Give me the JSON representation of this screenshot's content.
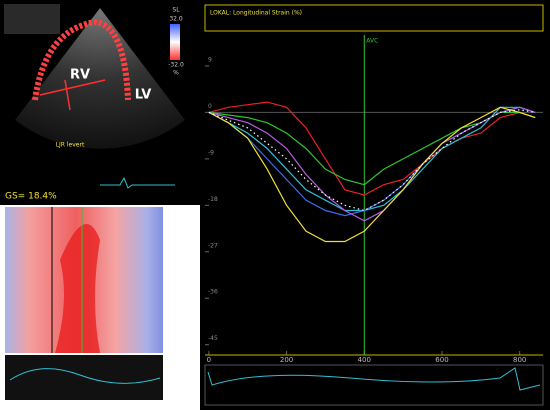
{
  "image_panel": {
    "labels": [
      "RV",
      "LV"
    ],
    "scale": {
      "title": "SL",
      "max": "32.0",
      "min": "-32.0",
      "unit": "%"
    },
    "caption": "LJR levert",
    "gs": "GS= 18.4%"
  },
  "chart_data": {
    "type": "line",
    "title": "LOKAL: Longitudinal Strain (%)",
    "x": [
      0,
      50,
      100,
      150,
      200,
      250,
      300,
      350,
      400,
      450,
      500,
      550,
      600,
      650,
      700,
      750,
      800,
      840
    ],
    "series": [
      {
        "color": "#e8202a",
        "values": [
          0,
          1,
          1.5,
          2,
          1,
          -3,
          -9,
          -15,
          -16,
          -14,
          -13,
          -10,
          -7,
          -5,
          -4,
          -1,
          0,
          -1
        ]
      },
      {
        "color": "#2ec62e",
        "values": [
          0,
          -0.5,
          -1,
          -2,
          -4,
          -7,
          -11,
          -13,
          -14,
          -11,
          -9,
          -7,
          -5,
          -3,
          -2,
          0,
          0,
          -1
        ]
      },
      {
        "color": "#2bc0d8",
        "values": [
          0,
          -2,
          -4,
          -7,
          -11,
          -15,
          -17,
          -19,
          -19,
          -18,
          -15,
          -11,
          -7,
          -5,
          -3,
          1,
          1,
          0
        ]
      },
      {
        "color": "#3a6de8",
        "values": [
          0,
          -2,
          -5,
          -9,
          -13,
          -17,
          -19,
          -20,
          -19,
          -17,
          -14,
          -10,
          -6,
          -4,
          -2,
          0,
          1,
          0
        ]
      },
      {
        "color": "#b060e0",
        "values": [
          0,
          -1,
          -2,
          -4,
          -7,
          -12,
          -16,
          -19,
          -21,
          -19,
          -15,
          -10,
          -6,
          -4,
          -2,
          0,
          1,
          0
        ]
      },
      {
        "color": "#f0e030",
        "values": [
          0,
          -2,
          -5,
          -11,
          -18,
          -23,
          -25,
          -25,
          -23,
          -19,
          -15,
          -10,
          -6,
          -3,
          -1,
          1,
          0,
          -1
        ]
      },
      {
        "color": "#ffffff",
        "dotted": true,
        "values": [
          0,
          -1.5,
          -3,
          -6,
          -9,
          -13,
          -16,
          -18,
          -19,
          -17,
          -14,
          -10,
          -7,
          -4,
          -2,
          0,
          0.5,
          0
        ]
      }
    ],
    "xlim": [
      -10,
      860
    ],
    "ylim": [
      -47,
      15
    ],
    "xticks": [
      0,
      200,
      400,
      600,
      800
    ],
    "yticks": [
      9,
      0,
      -9,
      -18,
      -27,
      -36,
      -45
    ],
    "annotations": [
      {
        "text": "AVC",
        "x": 400
      }
    ],
    "grid": false
  }
}
